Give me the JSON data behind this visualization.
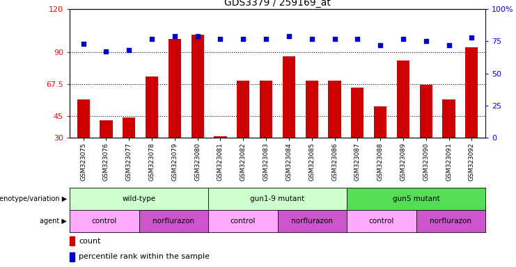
{
  "title": "GDS3379 / 259169_at",
  "samples": [
    "GSM323075",
    "GSM323076",
    "GSM323077",
    "GSM323078",
    "GSM323079",
    "GSM323080",
    "GSM323081",
    "GSM323082",
    "GSM323083",
    "GSM323084",
    "GSM323085",
    "GSM323086",
    "GSM323087",
    "GSM323088",
    "GSM323089",
    "GSM323090",
    "GSM323091",
    "GSM323092"
  ],
  "bar_values": [
    57,
    42,
    44,
    73,
    99,
    102,
    31,
    70,
    70,
    87,
    70,
    70,
    65,
    52,
    84,
    67,
    57,
    93
  ],
  "dot_values_pct": [
    73,
    67,
    68,
    77,
    79,
    79,
    77,
    77,
    77,
    79,
    77,
    77,
    77,
    72,
    77,
    75,
    72,
    78
  ],
  "bar_color": "#cc0000",
  "dot_color": "#0000cc",
  "ylim_left": [
    30,
    120
  ],
  "ylim_right": [
    0,
    100
  ],
  "yticks_left": [
    30,
    45,
    67.5,
    90,
    120
  ],
  "ytick_labels_left": [
    "30",
    "45",
    "67.5",
    "90",
    "120"
  ],
  "yticks_right": [
    0,
    25,
    50,
    75,
    100
  ],
  "ytick_labels_right": [
    "0",
    "25",
    "50",
    "75",
    "100%"
  ],
  "hlines": [
    90,
    67.5,
    45,
    30
  ],
  "genotype_groups": [
    {
      "label": "wild-type",
      "start": 0,
      "end": 5,
      "color": "#ccffcc"
    },
    {
      "label": "gun1-9 mutant",
      "start": 6,
      "end": 11,
      "color": "#ccffcc"
    },
    {
      "label": "gun5 mutant",
      "start": 12,
      "end": 17,
      "color": "#55dd55"
    }
  ],
  "agent_groups": [
    {
      "label": "control",
      "start": 0,
      "end": 2,
      "color": "#ffaaff"
    },
    {
      "label": "norflurazon",
      "start": 3,
      "end": 5,
      "color": "#cc55cc"
    },
    {
      "label": "control",
      "start": 6,
      "end": 8,
      "color": "#ffaaff"
    },
    {
      "label": "norflurazon",
      "start": 9,
      "end": 11,
      "color": "#cc55cc"
    },
    {
      "label": "control",
      "start": 12,
      "end": 14,
      "color": "#ffaaff"
    },
    {
      "label": "norflurazon",
      "start": 15,
      "end": 17,
      "color": "#cc55cc"
    }
  ],
  "legend_count_color": "#cc0000",
  "legend_dot_color": "#0000cc",
  "bg_color": "#ffffff"
}
